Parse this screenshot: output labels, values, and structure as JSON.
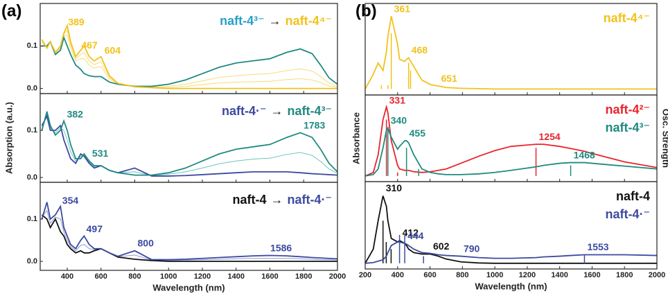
{
  "chart_data": [
    {
      "type": "line",
      "panel": "(a)",
      "legend_style": "arrow",
      "arrow": "→",
      "show_xticklabels": false,
      "x": [
        250,
        280,
        300,
        330,
        360,
        380,
        400,
        420,
        450,
        480,
        500,
        530,
        560,
        600,
        650,
        700,
        800,
        900,
        1000,
        1100,
        1200,
        1300,
        1400,
        1500,
        1600,
        1700,
        1780,
        1850,
        1900,
        1950,
        2000
      ],
      "xlim": [
        240,
        2000
      ],
      "xticks": [
        400,
        600,
        800,
        1000,
        1200,
        1400,
        1600,
        1800,
        2000
      ],
      "ylim": [
        -0.012,
        0.2
      ],
      "yticks": [
        {
          "value": 0,
          "label": "0.0"
        },
        {
          "value": 0.1,
          "label": "0.1"
        }
      ],
      "intermediate": [
        {
          "color": "#f6dc7a",
          "values": [
            0.108,
            0.097,
            0.11,
            0.083,
            0.095,
            0.125,
            0.125,
            0.095,
            0.065,
            0.07,
            0.07,
            0.055,
            0.048,
            0.052,
            0.022,
            0.011,
            0.004,
            0.003,
            0.005,
            0.01,
            0.018,
            0.026,
            0.03,
            0.033,
            0.035,
            0.042,
            0.046,
            0.041,
            0.028,
            0.013,
            0.005
          ]
        },
        {
          "color": "#f6dc7a",
          "values": [
            0.112,
            0.096,
            0.11,
            0.084,
            0.097,
            0.128,
            0.137,
            0.103,
            0.07,
            0.08,
            0.085,
            0.065,
            0.056,
            0.063,
            0.026,
            0.011,
            0.004,
            0.002,
            0.002,
            0.005,
            0.009,
            0.013,
            0.015,
            0.016,
            0.017,
            0.021,
            0.023,
            0.02,
            0.014,
            0.006,
            0.003
          ]
        }
      ],
      "series": [
        {
          "name": "naft-4³⁻",
          "color": "#1f8a80",
          "label_color": "#2aa0c8",
          "values": [
            0.1,
            0.1,
            0.11,
            0.08,
            0.09,
            0.12,
            0.1,
            0.08,
            0.055,
            0.045,
            0.035,
            0.03,
            0.028,
            0.028,
            0.015,
            0.01,
            0.005,
            0.005,
            0.01,
            0.02,
            0.035,
            0.05,
            0.06,
            0.065,
            0.07,
            0.085,
            0.093,
            0.082,
            0.055,
            0.025,
            0.01
          ]
        },
        {
          "name": "naft-4⁴⁻",
          "color": "#f2c21b",
          "values": [
            0.115,
            0.095,
            0.11,
            0.085,
            0.1,
            0.13,
            0.148,
            0.11,
            0.075,
            0.09,
            0.1,
            0.075,
            0.065,
            0.075,
            0.03,
            0.012,
            0.004,
            0.002,
            0,
            0,
            0,
            0,
            0,
            0,
            0,
            0,
            0,
            0,
            0,
            0,
            0
          ]
        }
      ],
      "annotations": [
        {
          "x": 389,
          "series": 1
        },
        {
          "x": 467,
          "series": 1
        },
        {
          "x": 604,
          "series": 1
        }
      ]
    },
    {
      "type": "line",
      "legend_style": "arrow",
      "arrow": "→",
      "show_xticklabels": false,
      "ylabel": "Absorption (a.u.)",
      "x": [
        250,
        280,
        300,
        330,
        360,
        380,
        400,
        420,
        450,
        480,
        500,
        530,
        560,
        600,
        650,
        700,
        800,
        900,
        1000,
        1100,
        1200,
        1300,
        1400,
        1500,
        1600,
        1700,
        1780,
        1850,
        1900,
        1950,
        2000
      ],
      "xlim": [
        240,
        2000
      ],
      "xticks": [
        400,
        600,
        800,
        1000,
        1200,
        1400,
        1600,
        1800,
        2000
      ],
      "ylim": [
        -0.0103,
        0.178
      ],
      "yticks": [
        {
          "value": 0,
          "label": "0.0"
        },
        {
          "value": 0.1,
          "label": "0.1"
        }
      ],
      "intermediate": [
        {
          "color": "#6cc4bd",
          "values": [
            0.105,
            0.135,
            0.105,
            0.095,
            0.105,
            0.1,
            0.08,
            0.055,
            0.035,
            0.045,
            0.048,
            0.033,
            0.023,
            0.025,
            0.015,
            0.01,
            0.012,
            0.004,
            0.007,
            0.012,
            0.02,
            0.029,
            0.035,
            0.039,
            0.041,
            0.049,
            0.053,
            0.047,
            0.034,
            0.018,
            0.009
          ]
        }
      ],
      "series": [
        {
          "name": "naft-4·⁻",
          "color": "#3b4aa0",
          "values": [
            0.11,
            0.13,
            0.1,
            0.1,
            0.11,
            0.08,
            0.06,
            0.04,
            0.03,
            0.05,
            0.045,
            0.03,
            0.02,
            0.025,
            0.015,
            0.01,
            0.02,
            0.003,
            0.003,
            0.004,
            0.006,
            0.008,
            0.01,
            0.012,
            0.012,
            0.012,
            0.01,
            0.008,
            0.007,
            0.006,
            0.005
          ]
        },
        {
          "name": "naft-4³⁻",
          "color": "#1f8a80",
          "values": [
            0.1,
            0.14,
            0.11,
            0.09,
            0.1,
            0.12,
            0.1,
            0.07,
            0.04,
            0.04,
            0.05,
            0.035,
            0.025,
            0.025,
            0.015,
            0.01,
            0.005,
            0.005,
            0.01,
            0.02,
            0.035,
            0.05,
            0.06,
            0.065,
            0.07,
            0.085,
            0.095,
            0.085,
            0.06,
            0.03,
            0.012
          ]
        }
      ],
      "annotations": [
        {
          "x": 382,
          "series": 1
        },
        {
          "x": 531,
          "series": 1
        },
        {
          "x": 1783,
          "series": 1
        }
      ]
    },
    {
      "type": "line",
      "legend_style": "arrow",
      "arrow": "→",
      "show_xticklabels": true,
      "xlabel": "Wavelength (nm)",
      "x": [
        250,
        280,
        300,
        330,
        360,
        380,
        400,
        420,
        450,
        480,
        500,
        530,
        560,
        600,
        650,
        700,
        800,
        900,
        1000,
        1100,
        1200,
        1300,
        1400,
        1500,
        1600,
        1700,
        1780,
        1850,
        1900,
        1950,
        2000
      ],
      "xlim": [
        240,
        2000
      ],
      "xticks": [
        400,
        600,
        800,
        1000,
        1200,
        1400,
        1600,
        1800,
        2000
      ],
      "ylim": [
        -0.0213,
        0.187
      ],
      "yticks": [
        {
          "value": 0,
          "label": "0.0"
        },
        {
          "value": 0.1,
          "label": "0.1"
        }
      ],
      "intermediate": [
        {
          "color": "#8e96cf",
          "values": [
            0.105,
            0.12,
            0.09,
            0.105,
            0.1,
            0.07,
            0.05,
            0.035,
            0.025,
            0.038,
            0.04,
            0.03,
            0.028,
            0.03,
            0.02,
            0.011,
            0.015,
            0.003,
            0.002,
            0.003,
            0.004,
            0.005,
            0.006,
            0.007,
            0.007,
            0.007,
            0.006,
            0.005,
            0.004,
            0.004,
            0.003
          ]
        }
      ],
      "series": [
        {
          "name": "naft-4",
          "color": "#111111",
          "values": [
            0.11,
            0.1,
            0.08,
            0.1,
            0.07,
            0.06,
            0.04,
            0.03,
            0.02,
            0.025,
            0.02,
            0.02,
            0.025,
            0.03,
            0.02,
            0.01,
            0.005,
            0.002,
            0,
            0,
            0,
            0,
            0,
            0,
            0,
            0,
            0,
            0,
            0,
            0,
            0
          ]
        },
        {
          "name": "naft-4·⁻",
          "color": "#3b4aa0",
          "values": [
            0.1,
            0.14,
            0.1,
            0.11,
            0.13,
            0.08,
            0.06,
            0.04,
            0.03,
            0.05,
            0.06,
            0.04,
            0.03,
            0.03,
            0.02,
            0.012,
            0.025,
            0.004,
            0.004,
            0.005,
            0.007,
            0.009,
            0.011,
            0.013,
            0.014,
            0.013,
            0.011,
            0.009,
            0.008,
            0.007,
            0.006
          ]
        }
      ],
      "annotations": [
        {
          "x": 354,
          "series": 1
        },
        {
          "x": 497,
          "series": 1
        },
        {
          "x": 800,
          "series": 1
        },
        {
          "x": 1586,
          "series": 1
        }
      ]
    },
    {
      "type": "line",
      "panel": "(b)",
      "legend_style": "stack",
      "show_xticklabels": false,
      "x": [
        200,
        250,
        280,
        310,
        331,
        340,
        361,
        400,
        412,
        444,
        455,
        468,
        500,
        550,
        602,
        651,
        700,
        790,
        900,
        1000,
        1100,
        1254,
        1300,
        1400,
        1468,
        1553,
        1600,
        1800,
        2000
      ],
      "xlim": [
        200,
        2000
      ],
      "xticks": [
        200,
        400,
        600,
        800,
        1000,
        1200,
        1400,
        1600,
        1800,
        2000
      ],
      "ylim": [
        -0.08,
        1.15
      ],
      "series": [
        {
          "name": "naft-4⁴⁻",
          "color": "#f2c21b",
          "values": [
            0,
            0.2,
            0.35,
            0.25,
            0.5,
            0.7,
            0.98,
            0.6,
            0.4,
            0.37,
            0.4,
            0.42,
            0.3,
            0.12,
            0.06,
            0.04,
            0.02,
            0.01,
            0.005,
            0,
            0,
            0,
            0,
            0,
            0,
            0,
            0,
            0,
            0
          ],
          "sticks_x": [
            300,
            340,
            361,
            468,
            480
          ],
          "sticks": [
            0.05,
            0.05,
            0.75,
            0.35,
            0.25
          ]
        }
      ],
      "annotations": [
        {
          "x": 361,
          "series": 0
        },
        {
          "x": 468,
          "series": 0
        },
        {
          "x": 651,
          "series": 0
        }
      ]
    },
    {
      "type": "line",
      "legend_style": "stack",
      "show_xticklabels": false,
      "ylabel": "Absorbance",
      "y2label": "Osc. Strength",
      "x": [
        200,
        250,
        280,
        310,
        331,
        340,
        361,
        400,
        412,
        444,
        455,
        468,
        500,
        550,
        602,
        651,
        700,
        790,
        900,
        1000,
        1100,
        1254,
        1300,
        1400,
        1468,
        1553,
        1600,
        1800,
        2000
      ],
      "xlim": [
        200,
        2000
      ],
      "xticks": [
        200,
        400,
        600,
        800,
        1000,
        1200,
        1400,
        1600,
        1800,
        2000
      ],
      "ylim": [
        -0.08,
        1.15
      ],
      "series": [
        {
          "name": "naft-4²⁻",
          "color": "#e8242b",
          "values": [
            0,
            0.05,
            0.3,
            0.8,
            0.98,
            0.9,
            0.5,
            0.15,
            0.1,
            0.08,
            0.08,
            0.08,
            0.06,
            0.05,
            0.06,
            0.08,
            0.1,
            0.18,
            0.28,
            0.36,
            0.42,
            0.45,
            0.45,
            0.42,
            0.39,
            0.35,
            0.32,
            0.2,
            0.12
          ],
          "sticks_x": [
            331,
            400,
            1254
          ],
          "sticks": [
            0.8,
            0.05,
            0.4
          ]
        },
        {
          "name": "naft-4³⁻",
          "color": "#1f8a80",
          "values": [
            0,
            0.02,
            0.1,
            0.4,
            0.65,
            0.68,
            0.55,
            0.38,
            0.42,
            0.5,
            0.5,
            0.47,
            0.3,
            0.1,
            0.05,
            0.03,
            0.02,
            0.02,
            0.03,
            0.05,
            0.08,
            0.13,
            0.15,
            0.18,
            0.19,
            0.19,
            0.18,
            0.14,
            0.1
          ],
          "sticks_x": [
            340,
            455,
            530,
            1468
          ],
          "sticks": [
            0.7,
            0.4,
            0.1,
            0.15
          ]
        }
      ],
      "annotations": [
        {
          "x": 331,
          "series": 0
        },
        {
          "x": 340,
          "series": 1
        },
        {
          "x": 455,
          "series": 1
        },
        {
          "x": 1254,
          "series": 0
        },
        {
          "x": 1468,
          "series": 1
        }
      ]
    },
    {
      "type": "line",
      "legend_style": "stack",
      "show_xticklabels": true,
      "xlabel": "Wavelength (nm)",
      "x": [
        200,
        250,
        280,
        310,
        331,
        340,
        361,
        400,
        412,
        444,
        455,
        468,
        500,
        550,
        602,
        651,
        700,
        790,
        900,
        1000,
        1100,
        1254,
        1300,
        1400,
        1468,
        1553,
        1600,
        1800,
        2000
      ],
      "xlim": [
        200,
        2000
      ],
      "xticks": [
        200,
        400,
        600,
        800,
        1000,
        1200,
        1400,
        1600,
        1800,
        2000
      ],
      "ylim": [
        -0.08,
        1.15
      ],
      "series": [
        {
          "name": "naft-4",
          "color": "#111111",
          "values": [
            0,
            0.2,
            0.6,
            0.95,
            0.8,
            0.6,
            0.35,
            0.3,
            0.32,
            0.28,
            0.25,
            0.2,
            0.15,
            0.13,
            0.13,
            0.1,
            0.06,
            0.02,
            0.005,
            0,
            0,
            0,
            0,
            0,
            0,
            0,
            0,
            0,
            0
          ],
          "sticks_x": [
            310,
            330,
            360
          ],
          "sticks": [
            0.6,
            0.3,
            0.2
          ]
        },
        {
          "name": "naft-4·⁻",
          "color": "#3b4aa0",
          "values": [
            0,
            0.01,
            0.03,
            0.05,
            0.1,
            0.15,
            0.25,
            0.3,
            0.3,
            0.28,
            0.27,
            0.25,
            0.2,
            0.15,
            0.14,
            0.12,
            0.11,
            0.1,
            0.08,
            0.07,
            0.07,
            0.08,
            0.09,
            0.1,
            0.11,
            0.12,
            0.12,
            0.12,
            0.11
          ],
          "sticks_x": [
            412,
            444,
            560,
            1553
          ],
          "sticks": [
            0.4,
            0.4,
            0.1,
            0.12
          ]
        }
      ],
      "annotations": [
        {
          "x": 310,
          "series": 0
        },
        {
          "x": 412,
          "series": 0
        },
        {
          "x": 602,
          "series": 0
        },
        {
          "x": 444,
          "series": 1
        },
        {
          "x": 790,
          "series": 1
        },
        {
          "x": 1553,
          "series": 1
        }
      ]
    }
  ]
}
